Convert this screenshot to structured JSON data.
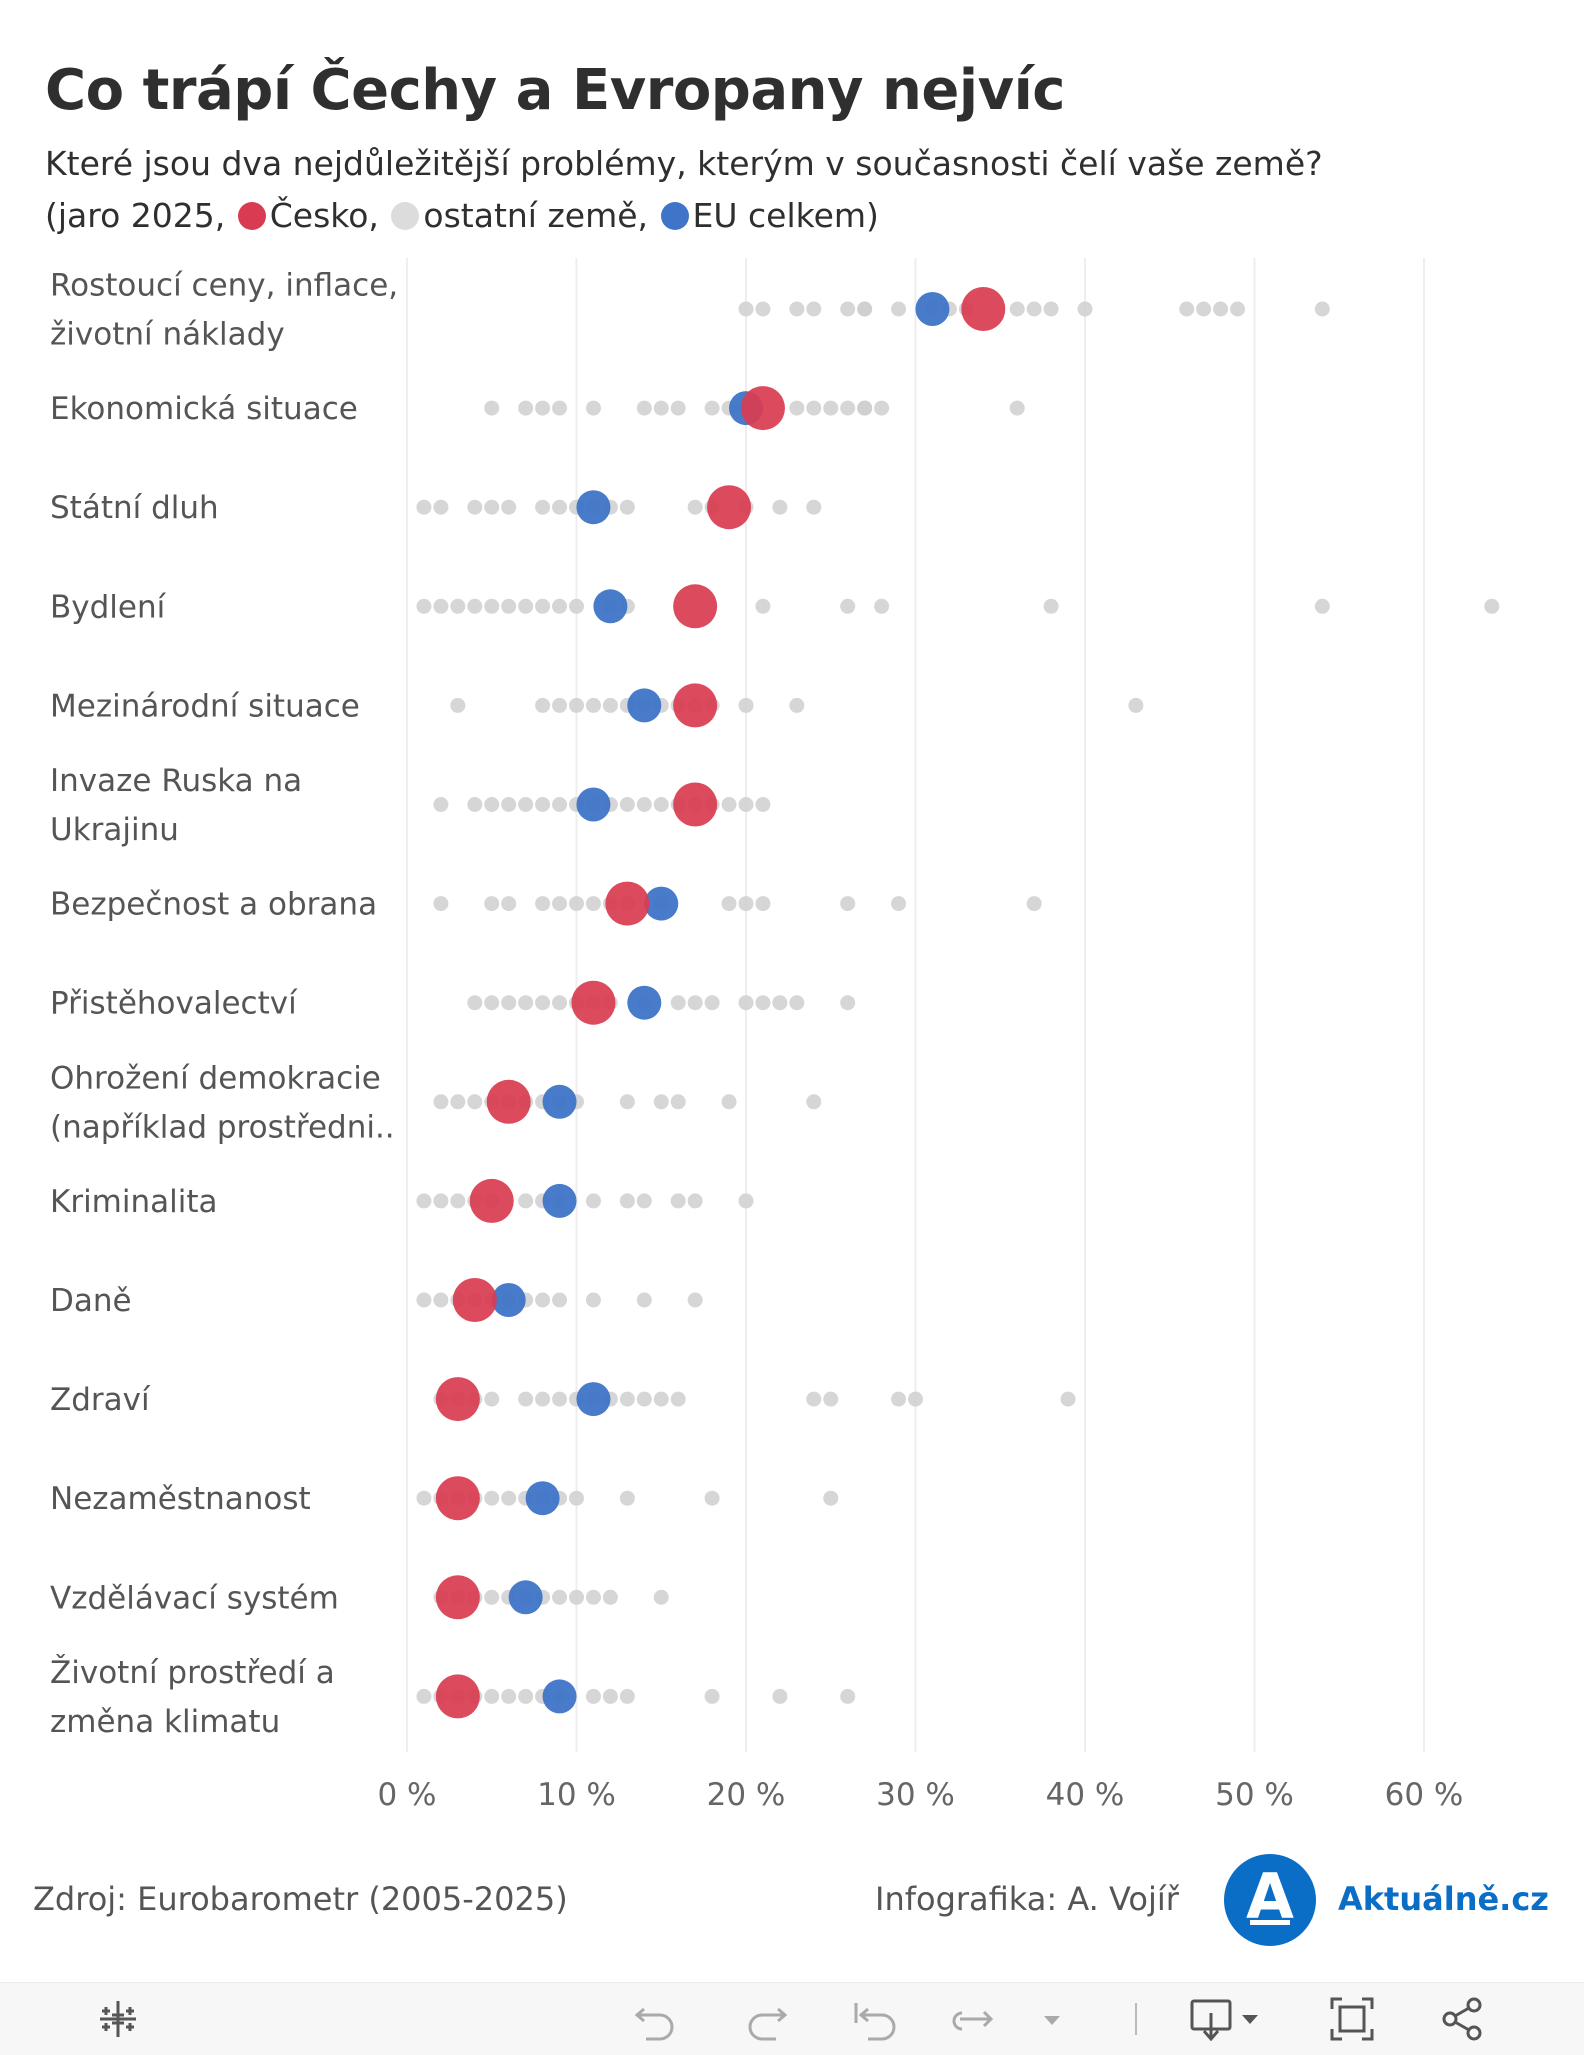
{
  "title": "Co trápí Čechy a Evropany nejvíc",
  "subtitle": {
    "question": "Které jsou dva nejdůležitější problémy, kterým v současnosti čelí vaše země?",
    "open": "(jaro 2025, ",
    "legend_cz": "Česko,",
    "legend_other": "ostatní země,",
    "legend_eu": "EU celkem)"
  },
  "colors": {
    "cz": "#d93c52",
    "eu": "#3f74c8",
    "other": "#cfcfcf",
    "grid": "#eeeeee",
    "brand": "#0a6ec7"
  },
  "chart_data": {
    "type": "scatter",
    "xlim": [
      0,
      65
    ],
    "x_ticks": [
      0,
      10,
      20,
      30,
      40,
      50,
      60
    ],
    "x_tick_labels": [
      "0 %",
      "10 %",
      "20 %",
      "30 %",
      "40 %",
      "50 %",
      "60 %"
    ],
    "series": [
      {
        "name": "Česko",
        "color": "#d93c52"
      },
      {
        "name": "ostatní země",
        "color": "#cfcfcf"
      },
      {
        "name": "EU celkem",
        "color": "#3f74c8"
      }
    ],
    "categories": [
      {
        "label_lines": [
          "Rostoucí ceny, inflace,",
          "životní náklady"
        ],
        "cz": 34,
        "eu": 31,
        "others": [
          20,
          21,
          23,
          24,
          26,
          27,
          27,
          29,
          31,
          32,
          33,
          36,
          37,
          38,
          40,
          46,
          47,
          48,
          49,
          54
        ]
      },
      {
        "label_lines": [
          "Ekonomická situace"
        ],
        "cz": 21,
        "eu": 20,
        "others": [
          5,
          7,
          8,
          9,
          11,
          14,
          15,
          16,
          18,
          19,
          20,
          23,
          24,
          25,
          26,
          27,
          27,
          28,
          36
        ]
      },
      {
        "label_lines": [
          "Státní dluh"
        ],
        "cz": 19,
        "eu": 11,
        "others": [
          1,
          2,
          4,
          5,
          6,
          8,
          9,
          10,
          11,
          12,
          13,
          17,
          18,
          20,
          22,
          24
        ]
      },
      {
        "label_lines": [
          "Bydlení"
        ],
        "cz": 17,
        "eu": 12,
        "others": [
          1,
          2,
          3,
          4,
          5,
          6,
          7,
          8,
          9,
          10,
          12,
          13,
          21,
          26,
          28,
          38,
          54,
          64
        ]
      },
      {
        "label_lines": [
          "Mezinárodní situace"
        ],
        "cz": 17,
        "eu": 14,
        "others": [
          3,
          8,
          9,
          10,
          11,
          12,
          13,
          14,
          15,
          16,
          17,
          18,
          20,
          23,
          43
        ]
      },
      {
        "label_lines": [
          "Invaze Ruska na",
          "Ukrajinu"
        ],
        "cz": 17,
        "eu": 11,
        "others": [
          2,
          4,
          5,
          6,
          7,
          8,
          9,
          10,
          11,
          12,
          13,
          14,
          15,
          16,
          17,
          18,
          19,
          20,
          21
        ]
      },
      {
        "label_lines": [
          "Bezpečnost a obrana"
        ],
        "cz": 13,
        "eu": 15,
        "others": [
          2,
          5,
          6,
          8,
          9,
          10,
          11,
          12,
          13,
          15,
          19,
          20,
          21,
          26,
          29,
          37
        ]
      },
      {
        "label_lines": [
          "Přistěhovalectví"
        ],
        "cz": 11,
        "eu": 14,
        "others": [
          4,
          5,
          6,
          7,
          8,
          9,
          10,
          11,
          12,
          14,
          16,
          17,
          18,
          20,
          21,
          22,
          23,
          26
        ]
      },
      {
        "label_lines": [
          "Ohrožení demokracie",
          "(například prostředni.."
        ],
        "cz": 6,
        "eu": 9,
        "others": [
          2,
          3,
          4,
          5,
          6,
          7,
          8,
          9,
          10,
          13,
          15,
          16,
          19,
          24
        ]
      },
      {
        "label_lines": [
          "Kriminalita"
        ],
        "cz": 5,
        "eu": 9,
        "others": [
          1,
          2,
          3,
          4,
          5,
          7,
          8,
          9,
          11,
          13,
          14,
          16,
          17,
          20
        ]
      },
      {
        "label_lines": [
          "Daně"
        ],
        "cz": 4,
        "eu": 6,
        "others": [
          1,
          2,
          3,
          4,
          5,
          6,
          7,
          8,
          9,
          11,
          14,
          17
        ]
      },
      {
        "label_lines": [
          "Zdraví"
        ],
        "cz": 3,
        "eu": 11,
        "others": [
          2,
          3,
          4,
          5,
          7,
          8,
          9,
          10,
          11,
          12,
          13,
          14,
          15,
          16,
          24,
          25,
          29,
          30,
          39
        ]
      },
      {
        "label_lines": [
          "Nezaměstnanost"
        ],
        "cz": 3,
        "eu": 8,
        "others": [
          1,
          2,
          3,
          4,
          5,
          6,
          7,
          8,
          9,
          10,
          13,
          18,
          25
        ]
      },
      {
        "label_lines": [
          "Vzdělávací systém"
        ],
        "cz": 3,
        "eu": 7,
        "others": [
          2,
          3,
          4,
          5,
          6,
          7,
          8,
          9,
          10,
          11,
          12,
          15
        ]
      },
      {
        "label_lines": [
          "Životní prostředí a",
          "změna klimatu"
        ],
        "cz": 3,
        "eu": 9,
        "others": [
          1,
          2,
          3,
          4,
          5,
          6,
          7,
          8,
          9,
          11,
          12,
          13,
          18,
          22,
          26
        ]
      }
    ]
  },
  "footer": {
    "source": "Zdroj: Eurobarometr (2005-2025)",
    "credit": "Infografika: A. Vojíř",
    "brand_letter": "A",
    "brand_name": "Aktuálně.cz"
  },
  "toolbar": {
    "icons": [
      "tableau-logo-icon",
      "undo-icon",
      "redo-icon",
      "revert-icon",
      "refresh-icon",
      "dropdown-arrow-icon",
      "download-icon",
      "fullscreen-icon",
      "share-icon"
    ]
  }
}
